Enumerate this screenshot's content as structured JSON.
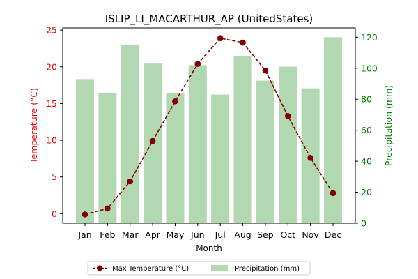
{
  "chart_data": {
    "type": "bar+line",
    "title": "ISLIP_LI_MACARTHUR_AP (UnitedStates)",
    "xlabel": "Month",
    "categories": [
      "Jan",
      "Feb",
      "Mar",
      "Apr",
      "May",
      "Jun",
      "Jul",
      "Aug",
      "Sep",
      "Oct",
      "Nov",
      "Dec"
    ],
    "left_axis": {
      "label": "Temperature (°C)",
      "ylim": [
        -1.3,
        25.3
      ],
      "ticks": [
        "0",
        "5",
        "10",
        "15",
        "20",
        "25"
      ],
      "color": "#e00000"
    },
    "right_axis": {
      "label": "Precipitation (mm)",
      "ylim": [
        0,
        126
      ],
      "ticks": [
        "0",
        "20",
        "40",
        "60",
        "80",
        "100",
        "120"
      ],
      "color": "#008000"
    },
    "series": [
      {
        "name": "Max Temperature (°C)",
        "kind": "line",
        "axis": "left",
        "color": "#800000",
        "values": [
          -0.1,
          0.7,
          4.4,
          9.9,
          15.3,
          20.4,
          23.9,
          23.3,
          19.5,
          13.3,
          7.6,
          2.8
        ]
      },
      {
        "name": "Precipitation (mm)",
        "kind": "bar",
        "axis": "right",
        "color": "#b2d8b2",
        "values": [
          93,
          84,
          115,
          103,
          84,
          102,
          83,
          108,
          92,
          101,
          87,
          120
        ]
      }
    ],
    "legend_position": "bottom-center",
    "grid": false
  }
}
